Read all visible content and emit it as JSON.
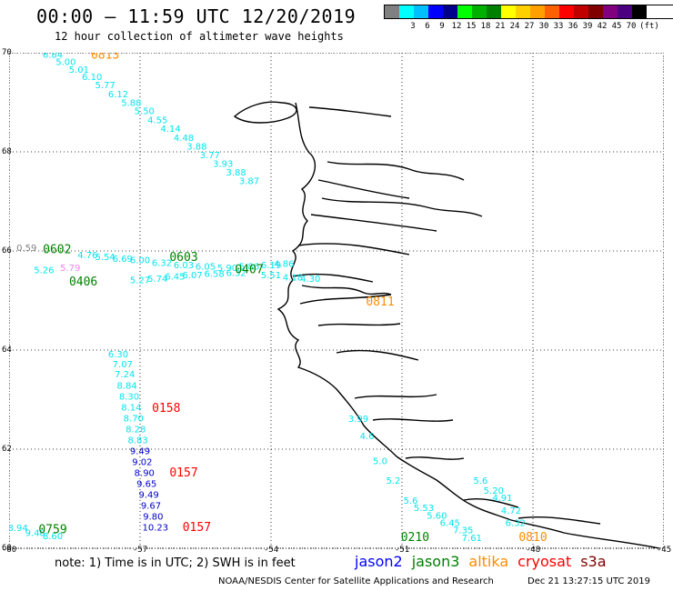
{
  "header": {
    "title": "00:00 – 11:59 UTC 12/20/2019",
    "subtitle": "12 hour collection of altimeter wave heights"
  },
  "legend": {
    "colors": [
      "#808080",
      "#00ffff",
      "#00bfff",
      "#0000ff",
      "#00008b",
      "#00ff00",
      "#00b000",
      "#008000",
      "#ffff00",
      "#ffd000",
      "#ffa000",
      "#ff6000",
      "#ff0000",
      "#c00000",
      "#800000",
      "#800080",
      "#4b0082",
      "#000000"
    ],
    "labels": [
      "3",
      "6",
      "9",
      "12",
      "15",
      "18",
      "21",
      "24",
      "27",
      "30",
      "33",
      "36",
      "39",
      "42",
      "45",
      "70"
    ],
    "unit": "(ft)"
  },
  "axes": {
    "lat_labels": [
      "70",
      "68",
      "66",
      "64",
      "62",
      "60"
    ],
    "lon_labels": [
      "-60",
      "-57",
      "-54",
      "-51",
      "-48",
      "-45"
    ]
  },
  "tracks": [
    {
      "color": "#00e5ee",
      "points": [
        {
          "lon": -59.0,
          "lat": 69.9,
          "v": "6.84"
        },
        {
          "lon": -58.7,
          "lat": 69.75,
          "v": "5.00"
        },
        {
          "lon": -58.4,
          "lat": 69.6,
          "v": "5.01"
        },
        {
          "lon": -58.1,
          "lat": 69.45,
          "v": "6.10"
        },
        {
          "lon": -57.8,
          "lat": 69.28,
          "v": "5.77"
        },
        {
          "lon": -57.5,
          "lat": 69.1,
          "v": "6.12"
        },
        {
          "lon": -57.2,
          "lat": 68.93,
          "v": "5.88"
        },
        {
          "lon": -56.9,
          "lat": 68.76,
          "v": "5.50"
        },
        {
          "lon": -56.6,
          "lat": 68.58,
          "v": "4.55"
        },
        {
          "lon": -56.3,
          "lat": 68.4,
          "v": "4.14"
        },
        {
          "lon": -56.0,
          "lat": 68.22,
          "v": "4.48"
        },
        {
          "lon": -55.7,
          "lat": 68.05,
          "v": "3.88"
        },
        {
          "lon": -55.4,
          "lat": 67.87,
          "v": "3.77"
        },
        {
          "lon": -55.1,
          "lat": 67.7,
          "v": "3.93"
        },
        {
          "lon": -54.8,
          "lat": 67.52,
          "v": "3.88"
        },
        {
          "lon": -54.5,
          "lat": 67.35,
          "v": "3.87"
        }
      ]
    },
    {
      "color": "#00e5ee",
      "points": [
        {
          "lon": -58.2,
          "lat": 65.85,
          "v": "4.76"
        },
        {
          "lon": -57.8,
          "lat": 65.82,
          "v": "5.54"
        },
        {
          "lon": -57.4,
          "lat": 65.78,
          "v": "6.69"
        },
        {
          "lon": -57.0,
          "lat": 65.75,
          "v": "6.00"
        },
        {
          "lon": -56.5,
          "lat": 65.7,
          "v": "6.32"
        },
        {
          "lon": -56.0,
          "lat": 65.65,
          "v": "6.03"
        },
        {
          "lon": -55.5,
          "lat": 65.62,
          "v": "6.05"
        },
        {
          "lon": -55.0,
          "lat": 65.6,
          "v": "5.90"
        },
        {
          "lon": -54.5,
          "lat": 65.62,
          "v": "5.86"
        },
        {
          "lon": -54.0,
          "lat": 65.65,
          "v": "6.19"
        },
        {
          "lon": -53.7,
          "lat": 65.68,
          "v": "4.86"
        }
      ]
    },
    {
      "color": "#00e5ee",
      "points": [
        {
          "lon": -57.0,
          "lat": 65.35,
          "v": "5.27"
        },
        {
          "lon": -56.6,
          "lat": 65.38,
          "v": "5.74"
        },
        {
          "lon": -56.2,
          "lat": 65.42,
          "v": "6.45"
        },
        {
          "lon": -55.8,
          "lat": 65.45,
          "v": "6.07"
        },
        {
          "lon": -55.3,
          "lat": 65.48,
          "v": "6.58"
        },
        {
          "lon": -54.8,
          "lat": 65.5,
          "v": "6.32"
        },
        {
          "lon": -54.0,
          "lat": 65.45,
          "v": "5.51"
        },
        {
          "lon": -53.5,
          "lat": 65.4,
          "v": "4.18"
        },
        {
          "lon": -53.1,
          "lat": 65.38,
          "v": "4.30"
        }
      ]
    },
    {
      "color": "#00e5ee",
      "points": [
        {
          "lon": -57.5,
          "lat": 63.85,
          "v": "6.30"
        },
        {
          "lon": -57.4,
          "lat": 63.65,
          "v": "7.07"
        },
        {
          "lon": -57.35,
          "lat": 63.45,
          "v": "7.24"
        },
        {
          "lon": -57.3,
          "lat": 63.22,
          "v": "8.84"
        },
        {
          "lon": -57.25,
          "lat": 63.0,
          "v": "8.30"
        },
        {
          "lon": -57.2,
          "lat": 62.78,
          "v": "8.14"
        },
        {
          "lon": -57.15,
          "lat": 62.56,
          "v": "8.70"
        },
        {
          "lon": -57.1,
          "lat": 62.34,
          "v": "8.28"
        },
        {
          "lon": -57.05,
          "lat": 62.12,
          "v": "8.83"
        }
      ]
    },
    {
      "color": "#0000cd",
      "points": [
        {
          "lon": -57.0,
          "lat": 61.9,
          "v": "9.49"
        },
        {
          "lon": -56.95,
          "lat": 61.68,
          "v": "9.02"
        },
        {
          "lon": -56.9,
          "lat": 61.46,
          "v": "8.90"
        },
        {
          "lon": -56.85,
          "lat": 61.24,
          "v": "9.65"
        },
        {
          "lon": -56.8,
          "lat": 61.02,
          "v": "9.49"
        },
        {
          "lon": -56.75,
          "lat": 60.8,
          "v": "9.67"
        },
        {
          "lon": -56.7,
          "lat": 60.58,
          "v": "9.80"
        },
        {
          "lon": -56.65,
          "lat": 60.36,
          "v": "10.23"
        }
      ]
    },
    {
      "color": "#00e5ee",
      "points": [
        {
          "lon": -52.0,
          "lat": 62.55,
          "v": "3.99"
        },
        {
          "lon": -51.8,
          "lat": 62.2,
          "v": "4.6"
        },
        {
          "lon": -51.5,
          "lat": 61.7,
          "v": "5.0"
        },
        {
          "lon": -51.2,
          "lat": 61.3,
          "v": "5.2"
        },
        {
          "lon": -50.8,
          "lat": 60.9,
          "v": "5.6"
        },
        {
          "lon": -50.5,
          "lat": 60.75,
          "v": "5.53"
        },
        {
          "lon": -50.2,
          "lat": 60.6,
          "v": "5.60"
        },
        {
          "lon": -49.9,
          "lat": 60.45,
          "v": "6.45"
        },
        {
          "lon": -49.6,
          "lat": 60.3,
          "v": "7.35"
        },
        {
          "lon": -49.4,
          "lat": 60.15,
          "v": "7.61"
        }
      ]
    },
    {
      "color": "#00e5ee",
      "points": [
        {
          "lon": -49.2,
          "lat": 61.3,
          "v": "5.6"
        },
        {
          "lon": -48.9,
          "lat": 61.1,
          "v": "5.20"
        },
        {
          "lon": -48.7,
          "lat": 60.95,
          "v": "4.91"
        },
        {
          "lon": -48.5,
          "lat": 60.7,
          "v": "4.72"
        },
        {
          "lon": -48.4,
          "lat": 60.45,
          "v": "6.32"
        }
      ]
    },
    {
      "color": "#808080",
      "points": [
        {
          "lon": -59.6,
          "lat": 66.0,
          "v": "0.59"
        }
      ]
    },
    {
      "color": "#00e5ee",
      "points": [
        {
          "lon": -59.2,
          "lat": 65.55,
          "v": "5.26"
        }
      ]
    },
    {
      "color": "#ee82ee",
      "points": [
        {
          "lon": -58.6,
          "lat": 65.6,
          "v": "5.79"
        }
      ]
    },
    {
      "color": "#00e5ee",
      "points": [
        {
          "lon": -59.8,
          "lat": 60.35,
          "v": "8.94"
        },
        {
          "lon": -59.4,
          "lat": 60.25,
          "v": "9.48"
        },
        {
          "lon": -59.0,
          "lat": 60.18,
          "v": "8.60"
        }
      ]
    }
  ],
  "time_labels": [
    {
      "text": "0813",
      "lon": -57.8,
      "lat": 69.88,
      "color": "#ff8c00"
    },
    {
      "text": "0602",
      "lon": -58.9,
      "lat": 65.95,
      "color": "#008000"
    },
    {
      "text": "0603",
      "lon": -56.0,
      "lat": 65.8,
      "color": "#008000"
    },
    {
      "text": "0407",
      "lon": -54.5,
      "lat": 65.55,
      "color": "#008000"
    },
    {
      "text": "0406",
      "lon": -58.3,
      "lat": 65.3,
      "color": "#008000"
    },
    {
      "text": "0811",
      "lon": -51.5,
      "lat": 64.9,
      "color": "#ff8c00"
    },
    {
      "text": "0158",
      "lon": -56.4,
      "lat": 62.75,
      "color": "#ff0000"
    },
    {
      "text": "0157",
      "lon": -56.0,
      "lat": 61.45,
      "color": "#ff0000"
    },
    {
      "text": "0157",
      "lon": -55.7,
      "lat": 60.35,
      "color": "#ff0000"
    },
    {
      "text": "0759",
      "lon": -59.0,
      "lat": 60.3,
      "color": "#008000"
    },
    {
      "text": "0210",
      "lon": -50.7,
      "lat": 60.15,
      "color": "#008000"
    },
    {
      "text": "0810",
      "lon": -48.0,
      "lat": 60.15,
      "color": "#ff8c00"
    }
  ],
  "footer": {
    "note": "note: 1) Time is in UTC; 2) SWH is in feet",
    "satellites": [
      {
        "name": "jason2",
        "color": "#0000ff"
      },
      {
        "name": "jason3",
        "color": "#008000"
      },
      {
        "name": "altika",
        "color": "#ff8c00"
      },
      {
        "name": "cryosat",
        "color": "#ff0000"
      },
      {
        "name": "s3a",
        "color": "#800000"
      }
    ],
    "credit": "NOAA/NESDIS Center for Satellite Applications and Research",
    "timestamp": "Dec 21 13:27:15 UTC 2019"
  }
}
